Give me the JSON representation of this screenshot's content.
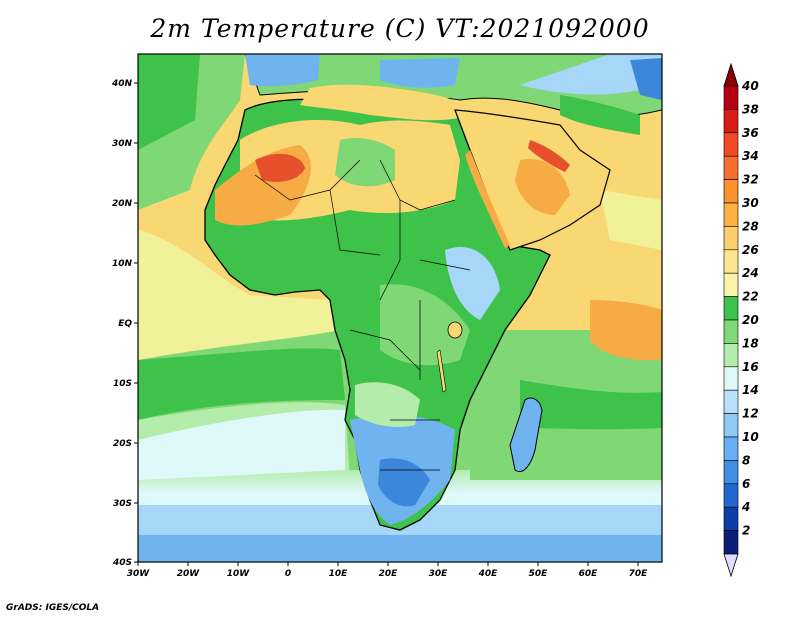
{
  "title": "2m Temperature (C) VT:2021092000",
  "credit": "GrADS: IGES/COLA",
  "map": {
    "lat_labels": [
      "40N",
      "30N",
      "20N",
      "10N",
      "EQ",
      "10S",
      "20S",
      "30S",
      "40S"
    ],
    "lon_labels": [
      "30W",
      "20W",
      "10W",
      "0",
      "10E",
      "20E",
      "30E",
      "40E",
      "50E",
      "60E",
      "70E"
    ],
    "lat_range": [
      -40,
      45
    ],
    "lon_range": [
      -30,
      75
    ],
    "colors": {
      "ocean_warm": "#f9d874",
      "ocean_mid": "#f1f19a",
      "green_dark": "#3fc24a",
      "green_mid": "#7fd776",
      "green_light": "#b4ecab",
      "cyan_light": "#dff8fa",
      "blue_light": "#a6d6f8",
      "blue_mid": "#6fb4ee",
      "blue_dark": "#3c86db",
      "orange": "#f7ab45",
      "red": "#e6502b",
      "coast": "#000000"
    }
  },
  "colorbar": {
    "values": [
      "40",
      "38",
      "36",
      "34",
      "32",
      "30",
      "28",
      "26",
      "24",
      "22",
      "20",
      "18",
      "16",
      "14",
      "12",
      "10",
      "8",
      "6",
      "4",
      "2"
    ],
    "colors": [
      "#b60011",
      "#d91d16",
      "#f04a26",
      "#f76f2e",
      "#f9932d",
      "#fbb243",
      "#fbd06c",
      "#fbe68f",
      "#fbf3a8",
      "#3dc34b",
      "#7fd978",
      "#b4edab",
      "#ddf8f8",
      "#b7e1fb",
      "#8fc9f6",
      "#67aff0",
      "#3f8fe3",
      "#2367cf",
      "#0d3ea8",
      "#0a1f75"
    ],
    "top_arrow_color": "#8b0007",
    "bottom_arrow_color": "#e2dbfb"
  }
}
